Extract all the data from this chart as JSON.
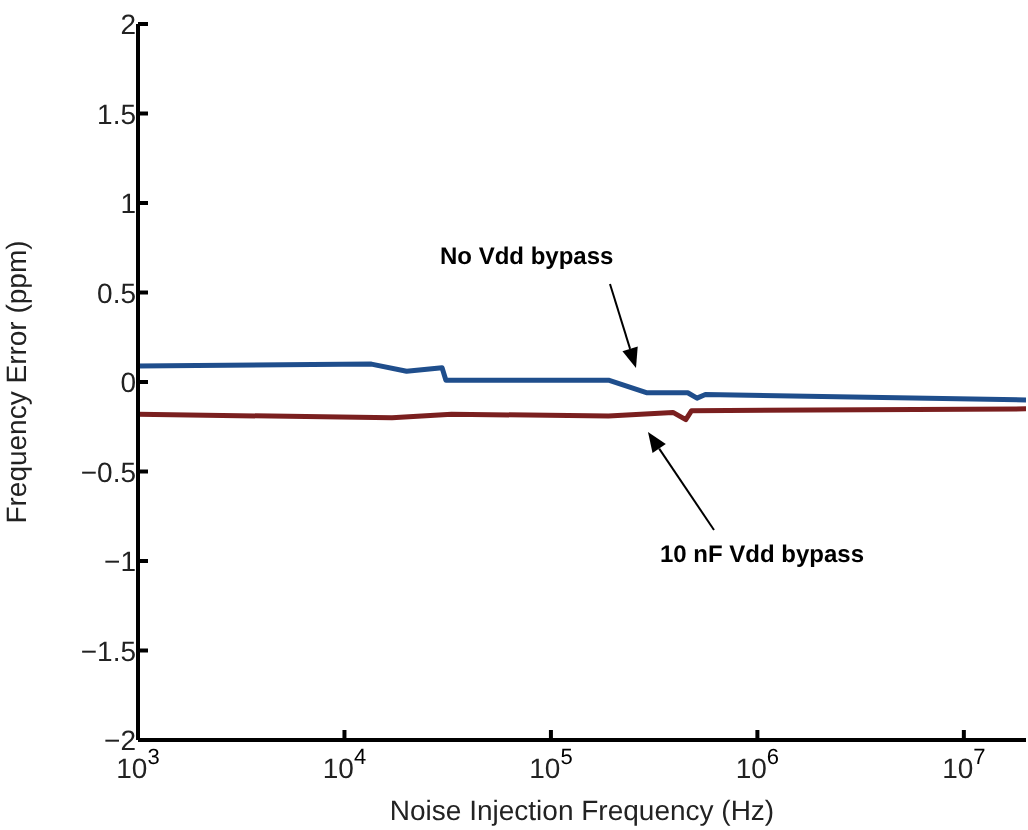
{
  "chart_data": {
    "type": "line",
    "xlabel": "Noise Injection Frequency (Hz)",
    "ylabel": "Frequency Error (ppm)",
    "log": "x",
    "xlim": [
      1000,
      20000000
    ],
    "ylim": [
      -2,
      2
    ],
    "xticks": [
      {
        "value": 1000,
        "label": "10$^{3}$"
      },
      {
        "value": 10000,
        "label": "10$^{4}$"
      },
      {
        "value": 100000,
        "label": "10$^{5}$"
      },
      {
        "value": 1000000,
        "label": "10$^{6}$"
      },
      {
        "value": 10000000,
        "label": "10$^{7}$"
      }
    ],
    "yticks": [
      {
        "value": -2,
        "label": "−2"
      },
      {
        "value": -1.5,
        "label": "−1.5"
      },
      {
        "value": -1,
        "label": "−1"
      },
      {
        "value": -0.5,
        "label": "−0.5"
      },
      0,
      0.5,
      1,
      1.5,
      2
    ],
    "grid": false,
    "legend": false,
    "marker": "none",
    "line_style": "solid",
    "series": [
      {
        "color": "#1f4e8c",
        "x": [
          1000,
          13500,
          20000,
          29700,
          31000,
          190000,
          290000,
          460000,
          510000,
          560000,
          20000000
        ],
        "values": [
          0.09,
          0.1,
          0.06,
          0.08,
          0.01,
          0.01,
          -0.06,
          -0.06,
          -0.09,
          -0.07,
          -0.1
        ]
      },
      {
        "color": "#7a1f1f",
        "x": [
          1000,
          17000,
          33000,
          190000,
          390000,
          450000,
          480000,
          20000000
        ],
        "values": [
          -0.18,
          -0.2,
          -0.18,
          -0.19,
          -0.17,
          -0.21,
          -0.16,
          -0.15
        ]
      }
    ],
    "annotations": [
      "No Vdd bypass",
      "10 nF Vdd bypass"
    ]
  }
}
